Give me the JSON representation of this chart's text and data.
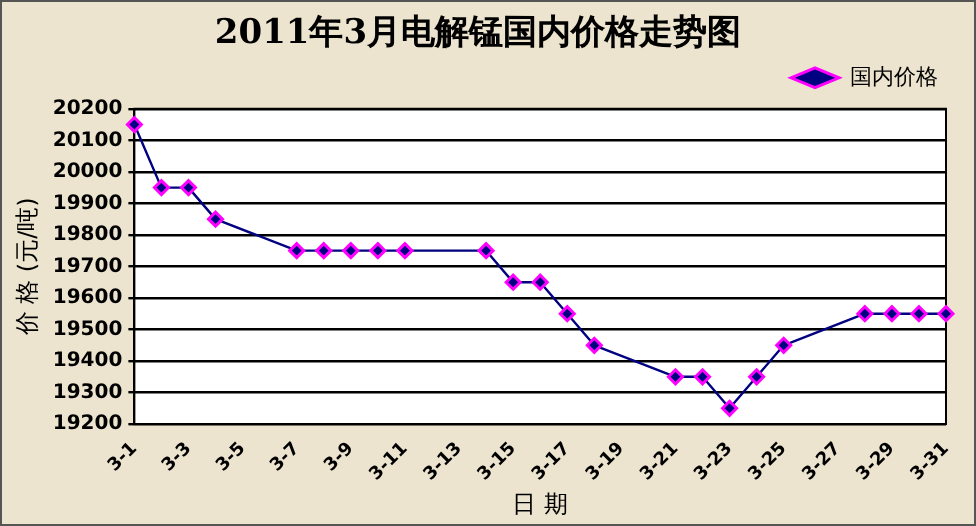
{
  "chart_data": {
    "type": "line",
    "title": "2011年3月电解锰国内价格走势图",
    "xlabel": "日 期",
    "ylabel": "价 格 (元/吨)",
    "categories": [
      "3-1",
      null,
      "3-3",
      null,
      "3-5",
      null,
      "3-7",
      null,
      "3-9",
      null,
      "3-11",
      null,
      "3-13",
      null,
      "3-15",
      null,
      "3-17",
      null,
      "3-19",
      null,
      "3-21",
      null,
      "3-23",
      null,
      "3-25",
      null,
      "3-27",
      null,
      "3-29",
      null,
      "3-31"
    ],
    "series": [
      {
        "name": "国内价格",
        "color": "#000080",
        "values": [
          20150,
          19950,
          19950,
          19850,
          null,
          null,
          19750,
          19750,
          19750,
          19750,
          19750,
          null,
          null,
          19750,
          19650,
          19650,
          19550,
          19450,
          null,
          null,
          19350,
          19350,
          19250,
          19350,
          19450,
          null,
          null,
          19550,
          19550,
          19550,
          19550
        ]
      }
    ],
    "ylim": [
      19200,
      20200
    ],
    "yticks": [
      19200,
      19300,
      19400,
      19500,
      19600,
      19700,
      19800,
      19900,
      20000,
      20100,
      20200
    ],
    "grid": "y",
    "legend": "top right",
    "marker": "diamond",
    "line_style": "solid"
  }
}
